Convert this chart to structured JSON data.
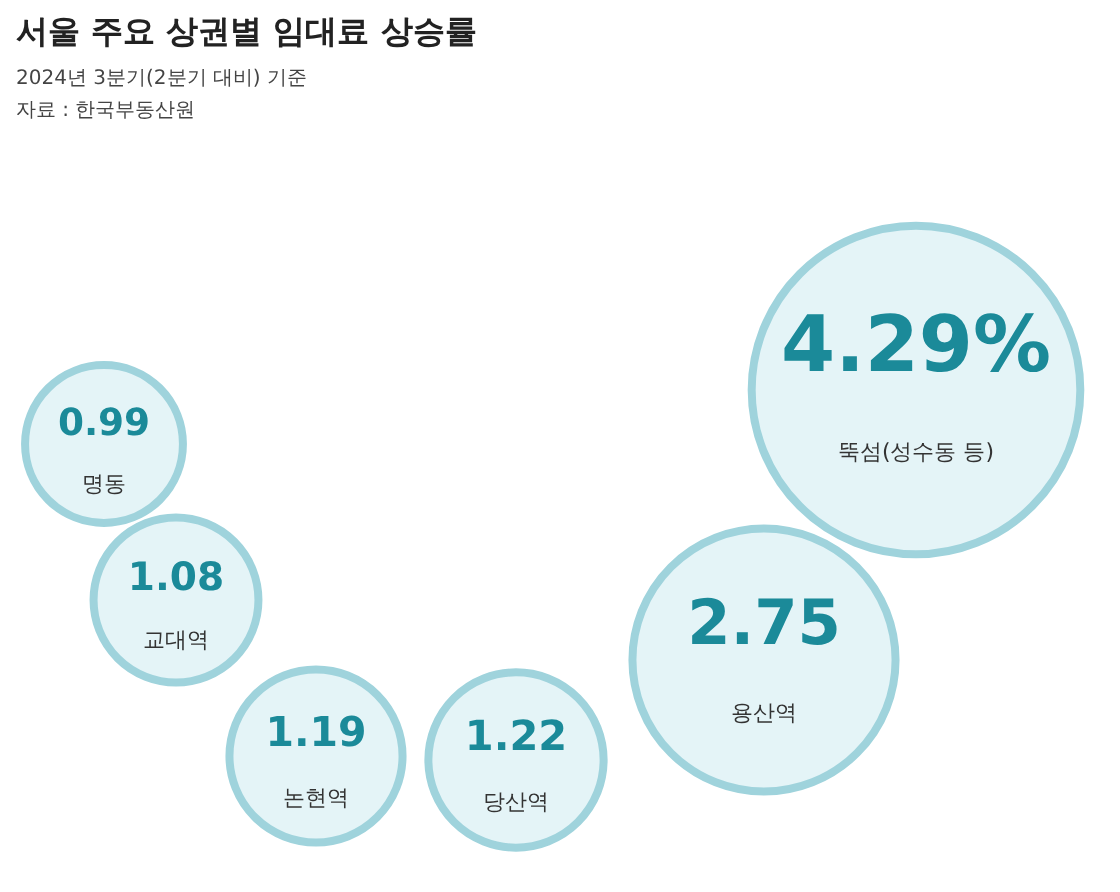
{
  "chart_data": {
    "type": "other",
    "title": "서울 주요 상권별 임대료 상승률",
    "subtitle": "2024년 3분기(2분기 대비) 기준",
    "annotations": [
      "자료 : 한국부동산원"
    ],
    "categories": [
      "명동",
      "교대역",
      "논현역",
      "당산역",
      "용산역",
      "뚝섬(성수동 등)"
    ],
    "values": [
      0.99,
      1.08,
      1.19,
      1.22,
      2.75,
      4.29
    ],
    "value_labels": [
      "0.99",
      "1.08",
      "1.19",
      "1.22",
      "2.75",
      "4.29%"
    ],
    "color": "#e4f4f7"
  }
}
